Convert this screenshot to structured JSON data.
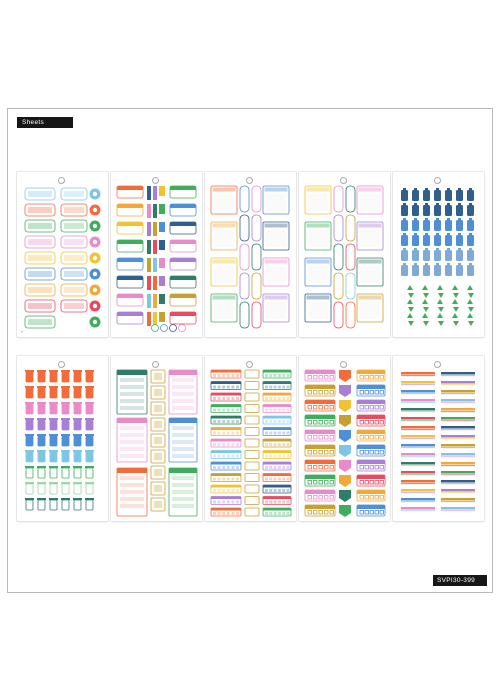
{
  "header": {
    "label": "Sheets"
  },
  "footer": {
    "product_code": "SVPI30-399"
  },
  "palette": {
    "frame_border": "#b9b9b9",
    "label_bg": "#161616",
    "orange": "#f26b3a",
    "blue": "#4f8fd6",
    "green": "#3fae5c",
    "yellow": "#f2c230",
    "pink": "#e98bc8",
    "navy": "#2f5f8e",
    "teal": "#2e7d6a",
    "mustard": "#c8a032"
  },
  "sheets": [
    {
      "name": "sheet-tickets-and-circles",
      "icon": "ticket-sticker-icon"
    },
    {
      "name": "sheet-labels-and-bars",
      "icon": "label-sticker-icon"
    },
    {
      "name": "sheet-frames-a",
      "icon": "frame-sticker-icon"
    },
    {
      "name": "sheet-frames-b",
      "icon": "frame-sticker-icon"
    },
    {
      "name": "sheet-water-bottles",
      "icon": "bottle-sticker-icon"
    },
    {
      "name": "sheet-trash-bins",
      "icon": "bin-sticker-icon"
    },
    {
      "name": "sheet-trackers",
      "icon": "tracker-sticker-icon"
    },
    {
      "name": "sheet-habit-grids",
      "icon": "grid-sticker-icon"
    },
    {
      "name": "sheet-checklist-boxes",
      "icon": "checkbox-sticker-icon"
    },
    {
      "name": "sheet-washi-strips",
      "icon": "strip-sticker-icon"
    }
  ]
}
